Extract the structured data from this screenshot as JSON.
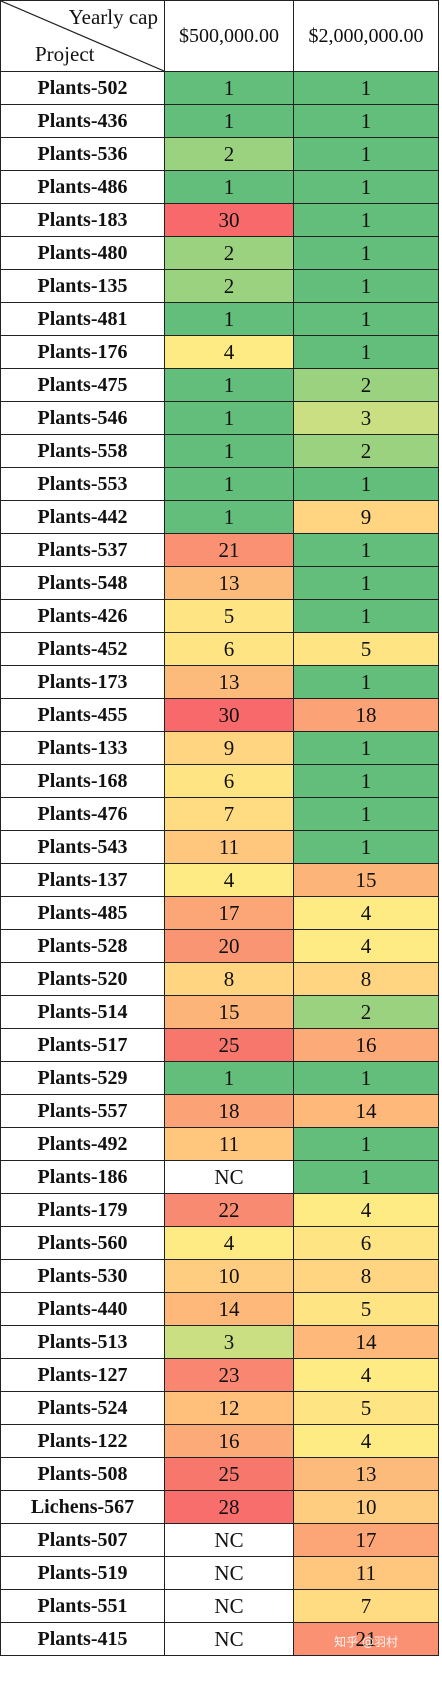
{
  "header": {
    "corner_top": "Yearly cap",
    "corner_bottom": "Project",
    "columns": [
      "$500,000.00",
      "$2,000,000.00"
    ]
  },
  "colors": {
    "1": "#63be7b",
    "2": "#9bd27f",
    "3": "#c9df81",
    "4": "#ffeb84",
    "5": "#ffe483",
    "6": "#ffe483",
    "7": "#ffdc81",
    "8": "#ffd581",
    "9": "#ffd581",
    "10": "#ffcd7f",
    "11": "#ffc77d",
    "12": "#ffc07c",
    "13": "#fdbb7b",
    "14": "#fdb87a",
    "15": "#fdb479",
    "16": "#fcaa77",
    "17": "#fca577",
    "18": "#fba276",
    "20": "#fa9573",
    "21": "#fa9173",
    "22": "#f98a72",
    "23": "#f98670",
    "25": "#f8776d",
    "28": "#f86e6c",
    "30": "#f8696b",
    "NC": "#ffffff"
  },
  "rows": [
    {
      "project": "Plants-502",
      "v500k": "1",
      "v2m": "1"
    },
    {
      "project": "Plants-436",
      "v500k": "1",
      "v2m": "1"
    },
    {
      "project": "Plants-536",
      "v500k": "2",
      "v2m": "1"
    },
    {
      "project": "Plants-486",
      "v500k": "1",
      "v2m": "1"
    },
    {
      "project": "Plants-183",
      "v500k": "30",
      "v2m": "1"
    },
    {
      "project": "Plants-480",
      "v500k": "2",
      "v2m": "1"
    },
    {
      "project": "Plants-135",
      "v500k": "2",
      "v2m": "1"
    },
    {
      "project": "Plants-481",
      "v500k": "1",
      "v2m": "1"
    },
    {
      "project": "Plants-176",
      "v500k": "4",
      "v2m": "1"
    },
    {
      "project": "Plants-475",
      "v500k": "1",
      "v2m": "2"
    },
    {
      "project": "Plants-546",
      "v500k": "1",
      "v2m": "3"
    },
    {
      "project": "Plants-558",
      "v500k": "1",
      "v2m": "2"
    },
    {
      "project": "Plants-553",
      "v500k": "1",
      "v2m": "1"
    },
    {
      "project": "Plants-442",
      "v500k": "1",
      "v2m": "9"
    },
    {
      "project": "Plants-537",
      "v500k": "21",
      "v2m": "1"
    },
    {
      "project": "Plants-548",
      "v500k": "13",
      "v2m": "1"
    },
    {
      "project": "Plants-426",
      "v500k": "5",
      "v2m": "1"
    },
    {
      "project": "Plants-452",
      "v500k": "6",
      "v2m": "5"
    },
    {
      "project": "Plants-173",
      "v500k": "13",
      "v2m": "1"
    },
    {
      "project": "Plants-455",
      "v500k": "30",
      "v2m": "18"
    },
    {
      "project": "Plants-133",
      "v500k": "9",
      "v2m": "1"
    },
    {
      "project": "Plants-168",
      "v500k": "6",
      "v2m": "1"
    },
    {
      "project": "Plants-476",
      "v500k": "7",
      "v2m": "1"
    },
    {
      "project": "Plants-543",
      "v500k": "11",
      "v2m": "1"
    },
    {
      "project": "Plants-137",
      "v500k": "4",
      "v2m": "15"
    },
    {
      "project": "Plants-485",
      "v500k": "17",
      "v2m": "4"
    },
    {
      "project": "Plants-528",
      "v500k": "20",
      "v2m": "4"
    },
    {
      "project": "Plants-520",
      "v500k": "8",
      "v2m": "8"
    },
    {
      "project": "Plants-514",
      "v500k": "15",
      "v2m": "2"
    },
    {
      "project": "Plants-517",
      "v500k": "25",
      "v2m": "16"
    },
    {
      "project": "Plants-529",
      "v500k": "1",
      "v2m": "1"
    },
    {
      "project": "Plants-557",
      "v500k": "18",
      "v2m": "14"
    },
    {
      "project": "Plants-492",
      "v500k": "11",
      "v2m": "1"
    },
    {
      "project": "Plants-186",
      "v500k": "NC",
      "v2m": "1"
    },
    {
      "project": "Plants-179",
      "v500k": "22",
      "v2m": "4"
    },
    {
      "project": "Plants-560",
      "v500k": "4",
      "v2m": "6"
    },
    {
      "project": "Plants-530",
      "v500k": "10",
      "v2m": "8"
    },
    {
      "project": "Plants-440",
      "v500k": "14",
      "v2m": "5"
    },
    {
      "project": "Plants-513",
      "v500k": "3",
      "v2m": "14"
    },
    {
      "project": "Plants-127",
      "v500k": "23",
      "v2m": "4"
    },
    {
      "project": "Plants-524",
      "v500k": "12",
      "v2m": "5"
    },
    {
      "project": "Plants-122",
      "v500k": "16",
      "v2m": "4"
    },
    {
      "project": "Plants-508",
      "v500k": "25",
      "v2m": "13"
    },
    {
      "project": "Lichens-567",
      "v500k": "28",
      "v2m": "10"
    },
    {
      "project": "Plants-507",
      "v500k": "NC",
      "v2m": "17"
    },
    {
      "project": "Plants-519",
      "v500k": "NC",
      "v2m": "11"
    },
    {
      "project": "Plants-551",
      "v500k": "NC",
      "v2m": "7"
    },
    {
      "project": "Plants-415",
      "v500k": "NC",
      "v2m": "21"
    }
  ],
  "watermark": "知乎 @羽村"
}
